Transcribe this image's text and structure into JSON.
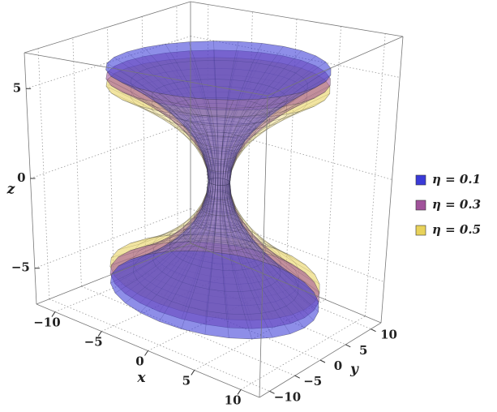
{
  "chart_data": {
    "type": "surface3d",
    "xlabel": "x",
    "ylabel": "y",
    "zlabel": "z",
    "xlim": [
      -12,
      12
    ],
    "ylim": [
      -12,
      12
    ],
    "zlim": [
      -7,
      7
    ],
    "xticks": [
      {
        "value": -10,
        "label": "−10"
      },
      {
        "value": -5,
        "label": "−5"
      },
      0,
      5,
      10
    ],
    "yticks": [
      {
        "value": -10,
        "label": "−10"
      },
      {
        "value": -5,
        "label": "−5"
      },
      0,
      5,
      10
    ],
    "zticks": [
      {
        "value": -5,
        "label": "−5"
      },
      0,
      5
    ],
    "grid": true,
    "legend": "right",
    "series": [
      {
        "name": "η = 0.1",
        "color": "#3a3ad8"
      },
      {
        "name": "η = 0.3",
        "color": "#a0529a"
      },
      {
        "name": "η = 0.5",
        "color": "#e8d25a"
      }
    ]
  }
}
